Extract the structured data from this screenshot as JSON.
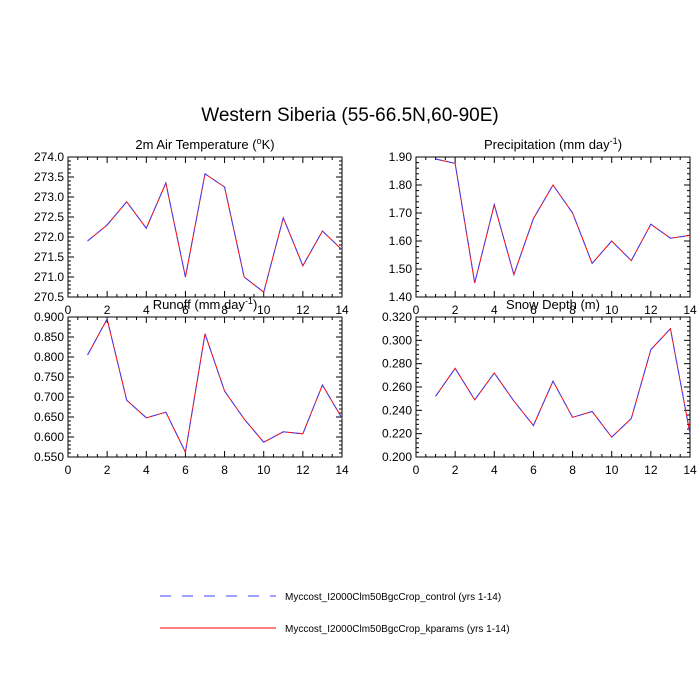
{
  "figure": {
    "title": "Western Siberia (55-66.5N,60-90E)"
  },
  "legend": {
    "entries": [
      {
        "label": "Myccost_I2000Clm50BgcCrop_control (yrs 1-14)",
        "color": "#4040ff",
        "dash": "dashed"
      },
      {
        "label": "Myccost_I2000Clm50BgcCrop_kparams (yrs 1-14)",
        "color": "#ff0000",
        "dash": "solid"
      }
    ]
  },
  "chart_data": [
    {
      "type": "line",
      "title": "2m Air Temperature (",
      "title_sup": "o",
      "title_after": "K)",
      "xlim": [
        0,
        14
      ],
      "ylim": [
        270.5,
        274.0
      ],
      "x_ticks": [
        0,
        2,
        4,
        6,
        8,
        10,
        12,
        14
      ],
      "y_ticks": [
        "270.5",
        "271.0",
        "271.5",
        "272.0",
        "272.5",
        "273.0",
        "273.5",
        "274.0"
      ],
      "x": [
        1,
        2,
        3,
        4,
        5,
        6,
        7,
        8,
        9,
        10,
        11,
        12,
        13,
        14
      ],
      "series": [
        {
          "values": [
            271.9,
            272.3,
            272.88,
            272.22,
            273.35,
            271.0,
            273.58,
            273.25,
            271.0,
            270.62,
            272.48,
            271.28,
            272.15,
            271.68
          ]
        },
        {
          "values": [
            271.9,
            272.3,
            272.88,
            272.22,
            273.35,
            271.0,
            273.58,
            273.25,
            271.0,
            270.62,
            272.48,
            271.28,
            272.15,
            271.68
          ]
        }
      ]
    },
    {
      "type": "line",
      "title": "Precipitation (mm day",
      "title_sup": "-1",
      "title_after": ")",
      "xlim": [
        0,
        14
      ],
      "ylim": [
        1.4,
        1.9
      ],
      "x_ticks": [
        0,
        2,
        4,
        6,
        8,
        10,
        12,
        14
      ],
      "y_ticks": [
        "1.40",
        "1.50",
        "1.60",
        "1.70",
        "1.80",
        "1.90"
      ],
      "x": [
        1,
        2,
        3,
        4,
        5,
        6,
        7,
        8,
        9,
        10,
        11,
        12,
        13,
        14
      ],
      "series": [
        {
          "values": [
            1.893,
            1.877,
            1.45,
            1.73,
            1.48,
            1.68,
            1.8,
            1.7,
            1.52,
            1.6,
            1.53,
            1.66,
            1.61,
            1.62
          ]
        },
        {
          "values": [
            1.893,
            1.877,
            1.45,
            1.73,
            1.48,
            1.68,
            1.8,
            1.7,
            1.52,
            1.6,
            1.53,
            1.66,
            1.61,
            1.62
          ]
        }
      ]
    },
    {
      "type": "line",
      "title": "Runoff (mm day",
      "title_sup": "-1",
      "title_after": ")",
      "xlim": [
        0,
        14
      ],
      "ylim": [
        0.55,
        0.9
      ],
      "x_ticks": [
        0,
        2,
        4,
        6,
        8,
        10,
        12,
        14
      ],
      "y_ticks": [
        "0.550",
        "0.600",
        "0.650",
        "0.700",
        "0.750",
        "0.800",
        "0.850",
        "0.900"
      ],
      "x": [
        1,
        2,
        3,
        4,
        5,
        6,
        7,
        8,
        9,
        10,
        11,
        12,
        13,
        14
      ],
      "series": [
        {
          "values": [
            0.805,
            0.895,
            0.692,
            0.648,
            0.662,
            0.562,
            0.858,
            0.715,
            0.645,
            0.587,
            0.613,
            0.608,
            0.73,
            0.647
          ]
        },
        {
          "values": [
            0.805,
            0.895,
            0.692,
            0.648,
            0.662,
            0.562,
            0.858,
            0.715,
            0.645,
            0.587,
            0.613,
            0.608,
            0.73,
            0.647
          ]
        }
      ]
    },
    {
      "type": "line",
      "title": "Snow Depth (m)",
      "title_sup": "",
      "title_after": "",
      "xlim": [
        0,
        14
      ],
      "ylim": [
        0.2,
        0.32
      ],
      "x_ticks": [
        0,
        2,
        4,
        6,
        8,
        10,
        12,
        14
      ],
      "y_ticks": [
        "0.200",
        "0.220",
        "0.240",
        "0.260",
        "0.280",
        "0.300",
        "0.320"
      ],
      "x": [
        1,
        2,
        3,
        4,
        5,
        6,
        7,
        8,
        9,
        10,
        11,
        12,
        13,
        14
      ],
      "series": [
        {
          "values": [
            0.252,
            0.276,
            0.249,
            0.272,
            0.248,
            0.227,
            0.265,
            0.234,
            0.239,
            0.217,
            0.233,
            0.292,
            0.31,
            0.22
          ]
        },
        {
          "values": [
            0.252,
            0.276,
            0.249,
            0.272,
            0.248,
            0.227,
            0.265,
            0.234,
            0.239,
            0.217,
            0.233,
            0.292,
            0.31,
            0.22
          ]
        }
      ]
    }
  ]
}
